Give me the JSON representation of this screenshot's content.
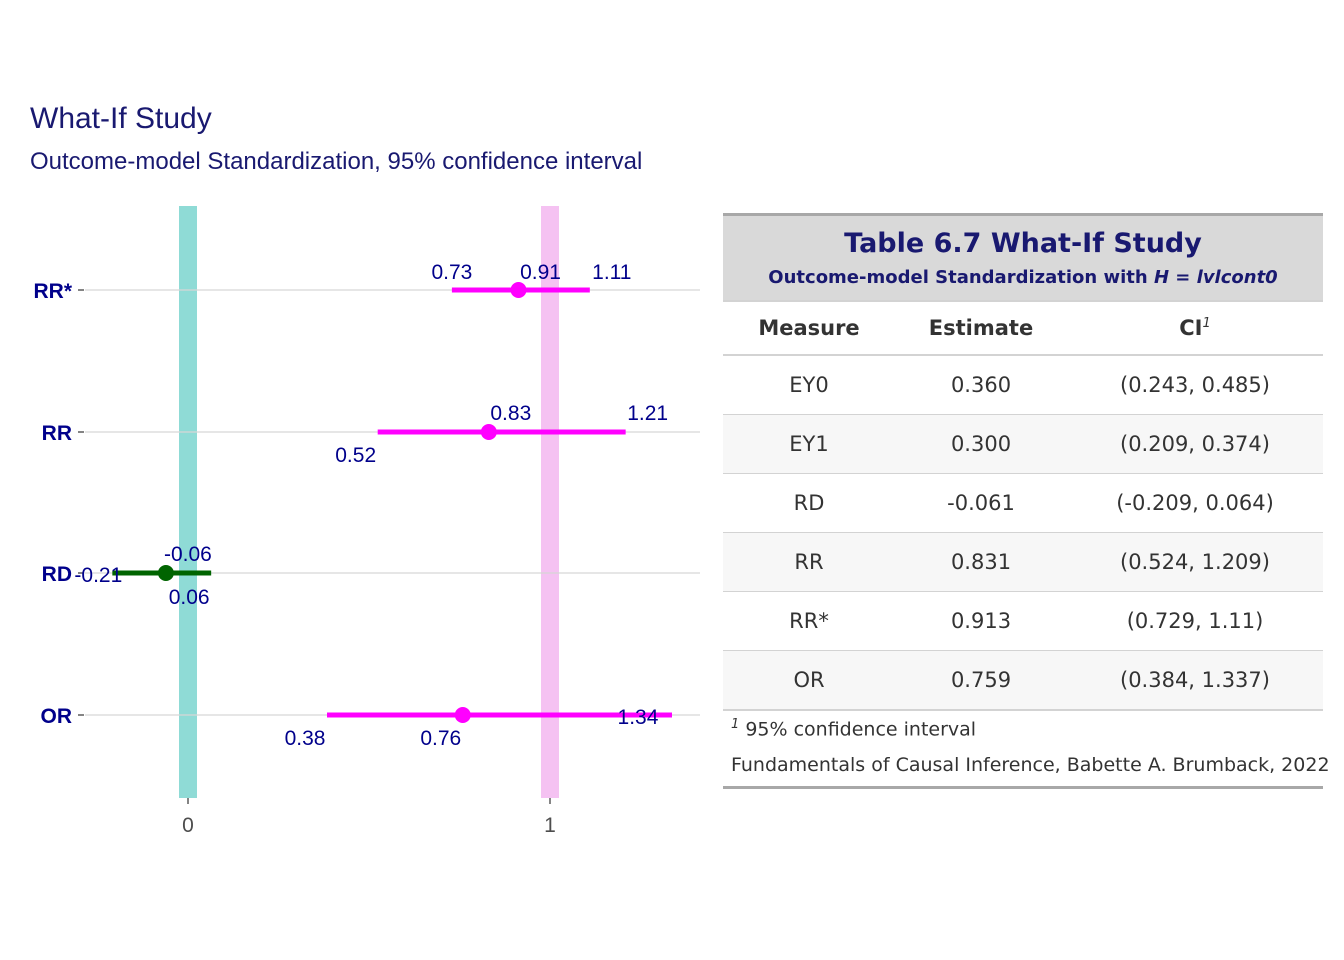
{
  "chart_data": {
    "type": "forest",
    "title": "What-If Study",
    "subtitle": "Outcome-model Standardization, 95% confidence interval",
    "categories": [
      "RR*",
      "RR",
      "RD",
      "OR"
    ],
    "x_ticks": [
      "0",
      "1"
    ],
    "xlim": [
      -0.2,
      1.4
    ],
    "reference_lines": [
      {
        "x": 0,
        "color": "#8fdbd6"
      },
      {
        "x": 1,
        "color": "#f5c2f2"
      }
    ],
    "points": [
      {
        "category": "RR*",
        "estimate": 0.913,
        "lower": 0.729,
        "upper": 1.11,
        "labels": {
          "lower": "0.73",
          "estimate": "0.91",
          "upper": "1.11"
        },
        "color": "#ff00ff"
      },
      {
        "category": "RR",
        "estimate": 0.831,
        "lower": 0.524,
        "upper": 1.209,
        "labels": {
          "lower": "0.52",
          "estimate": "0.83",
          "upper": "1.21"
        },
        "color": "#ff00ff"
      },
      {
        "category": "RD",
        "estimate": -0.061,
        "lower": -0.209,
        "upper": 0.064,
        "labels": {
          "lower": "-0.21",
          "estimate": "-0.06",
          "upper": "0.06"
        },
        "color": "#006400"
      },
      {
        "category": "OR",
        "estimate": 0.759,
        "lower": 0.384,
        "upper": 1.337,
        "labels": {
          "lower": "0.38",
          "estimate": "0.76",
          "upper": "1.34"
        },
        "color": "#ff00ff"
      }
    ]
  },
  "table": {
    "title": "Table 6.7 What-If Study",
    "subtitle_prefix": "Outcome-model Standardization with ",
    "subtitle_italic": "H = lvlcont0",
    "columns": {
      "measure": "Measure",
      "estimate": "Estimate",
      "ci": "CI",
      "ci_sup": "1"
    },
    "rows": [
      {
        "measure": "EY0",
        "estimate": "0.360",
        "ci": "(0.243, 0.485)"
      },
      {
        "measure": "EY1",
        "estimate": "0.300",
        "ci": "(0.209, 0.374)"
      },
      {
        "measure": "RD",
        "estimate": "-0.061",
        "ci": "(-0.209, 0.064)"
      },
      {
        "measure": "RR",
        "estimate": "0.831",
        "ci": "(0.524, 1.209)"
      },
      {
        "measure": "RR*",
        "estimate": "0.913",
        "ci": "(0.729, 1.11)"
      },
      {
        "measure": "OR",
        "estimate": "0.759",
        "ci": "(0.384, 1.337)"
      }
    ],
    "footnote_mark": "1",
    "footnote": " 95% confidence interval",
    "source": "Fundamentals of Causal Inference, Babette A. Brumback, 2022"
  }
}
